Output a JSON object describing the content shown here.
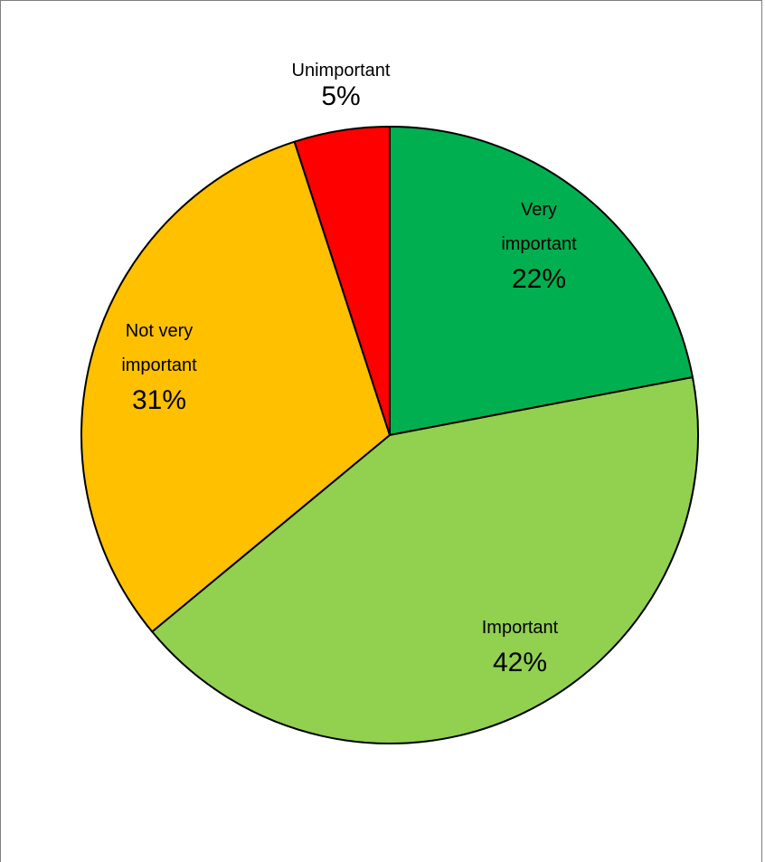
{
  "chart_data": {
    "type": "pie",
    "title": "",
    "slices": [
      {
        "name": "Very important",
        "value": 22,
        "label_lines": [
          "Very",
          "important"
        ],
        "percent_label": "22%",
        "color": "#00b050"
      },
      {
        "name": "Important",
        "value": 42,
        "label_lines": [
          "Important"
        ],
        "percent_label": "42%",
        "color": "#92d050"
      },
      {
        "name": "Not very important",
        "value": 31,
        "label_lines": [
          "Not very",
          "important"
        ],
        "percent_label": "31%",
        "color": "#ffc000"
      },
      {
        "name": "Unimportant",
        "value": 5,
        "label_lines": [
          "Unimportant"
        ],
        "percent_label": "5%",
        "color": "#ff0000"
      }
    ],
    "start_angle_deg": 0,
    "direction": "clockwise",
    "slice_outline_color": "#000000",
    "legend": "none"
  }
}
